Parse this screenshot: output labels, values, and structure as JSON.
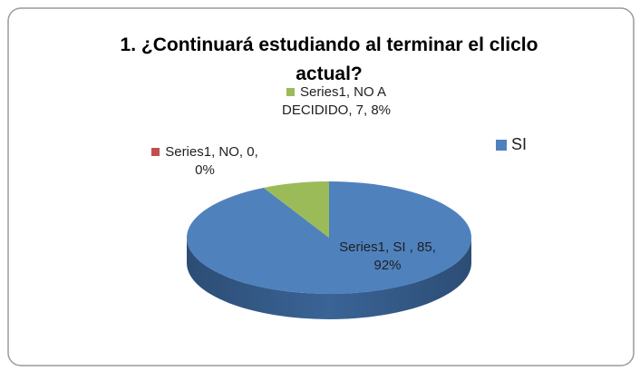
{
  "chart_data": {
    "type": "pie",
    "title": "1. ¿Continuará estudiando al terminar el cliclo actual?",
    "series_name": "Series1",
    "categories": [
      "SI",
      "NO",
      "NO A DECIDIDO"
    ],
    "values": [
      85,
      0,
      7
    ],
    "value_labels": [
      "Series1, SI , 85, 92%",
      "Series1, NO, 0, 0%",
      "Series1, NO A DECIDIDO, 7, 8%"
    ],
    "colors": [
      "#4f81bd",
      "#c0504d",
      "#9bbb59"
    ],
    "legend": "right"
  }
}
